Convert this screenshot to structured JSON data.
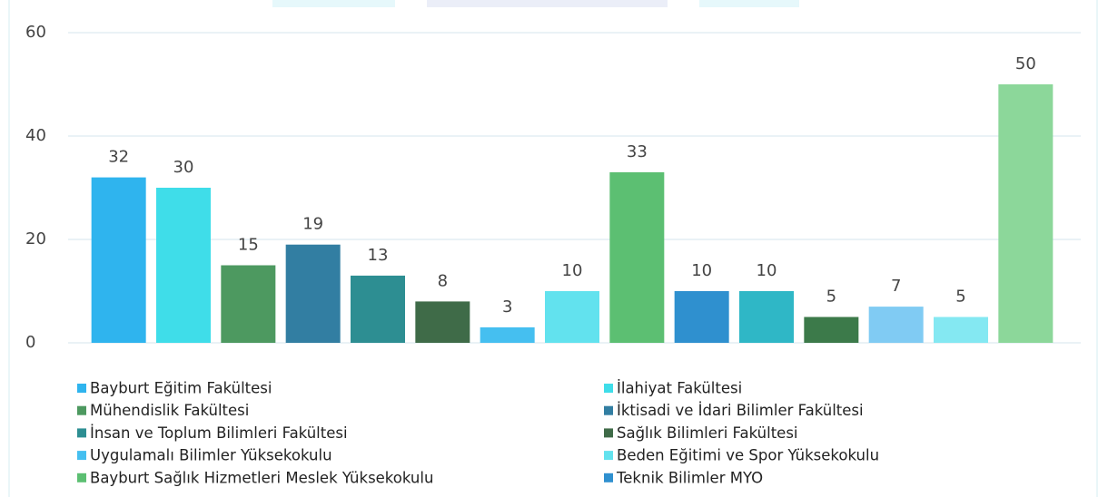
{
  "chart_data": {
    "type": "bar",
    "categories": [
      "Bayburt Eğitim Fakültesi",
      "İlahiyat Fakültesi",
      "Mühendislik Fakültesi",
      "İktisadi ve İdari Bilimler Fakültesi",
      "İnsan ve Toplum Bilimleri Fakültesi",
      "Sağlık Bilimleri Fakültesi",
      "Uygulamalı Bilimler Yüksekokulu",
      "Beden Eğitimi ve Spor Yüksekokulu",
      "Bayburt Sağlık Hizmetleri Meslek Yüksekokulu",
      "Teknik Bilimler MYO",
      null,
      null,
      null,
      null,
      null
    ],
    "values": [
      32,
      30,
      15,
      19,
      13,
      8,
      3,
      10,
      33,
      10,
      10,
      5,
      7,
      5,
      50
    ],
    "colors": [
      "#2fb4ee",
      "#3fdde9",
      "#4d9960",
      "#327ea2",
      "#2d8e92",
      "#3f6b48",
      "#45bff0",
      "#62e2ee",
      "#5cbf72",
      "#2f90cf",
      "#2fb7c6",
      "#3c7a4a",
      "#80cbf3",
      "#84e8f2",
      "#8cd79a"
    ],
    "ylim": [
      0,
      60
    ],
    "yticks": [
      0,
      20,
      40,
      60
    ],
    "grid": true,
    "legend": "bottom"
  }
}
